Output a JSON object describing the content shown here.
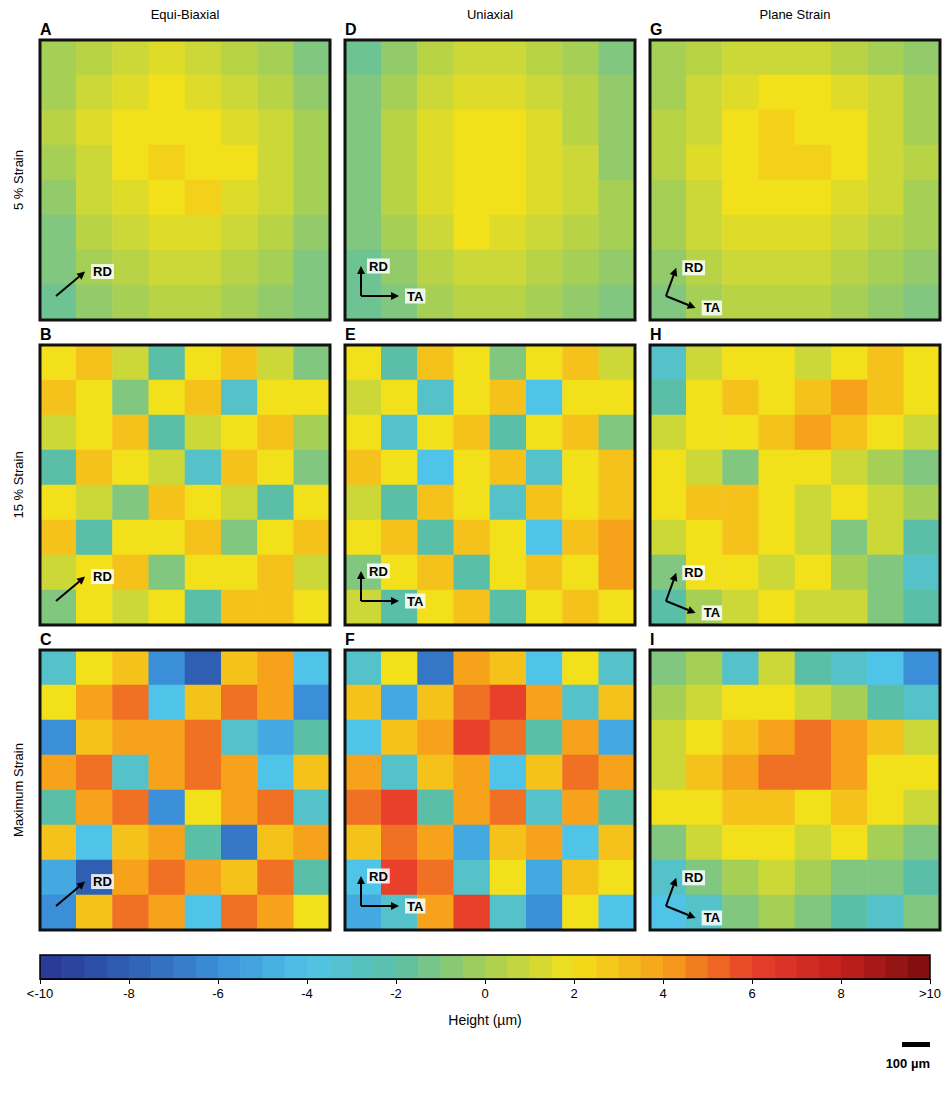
{
  "chart_data": {
    "type": "heatmap",
    "columns": [
      "Equi-Biaxial",
      "Uniaxial",
      "Plane Strain"
    ],
    "rows": [
      "5 % Strain",
      "15 % Strain",
      "Maximum Strain"
    ],
    "panels": [
      {
        "label": "A",
        "arrows": [
          "RD"
        ],
        "cells": [
          [
            0,
            0.5,
            1,
            1.5,
            1,
            0.5,
            0,
            -1
          ],
          [
            0,
            1,
            1.5,
            2,
            1.5,
            1,
            0.5,
            -0.5
          ],
          [
            0.5,
            1.5,
            2,
            2,
            2,
            1.5,
            1,
            0
          ],
          [
            0,
            1,
            2,
            2.5,
            2,
            2,
            1,
            0
          ],
          [
            -0.5,
            1,
            1.5,
            2,
            2.5,
            1.5,
            1,
            0
          ],
          [
            -1,
            0.5,
            1,
            1.5,
            1.5,
            1,
            0.5,
            -0.5
          ],
          [
            -1,
            0,
            0.5,
            1,
            1,
            0.5,
            0,
            -1
          ],
          [
            -1.5,
            -0.5,
            0,
            0.5,
            0.5,
            0,
            -0.5,
            -1
          ]
        ]
      },
      {
        "label": "B",
        "arrows": [
          "RD"
        ],
        "cells": [
          [
            2,
            3,
            1,
            -2,
            2,
            3,
            1,
            -1
          ],
          [
            3,
            2,
            -1,
            2,
            3,
            -3,
            2,
            2
          ],
          [
            1,
            2,
            3,
            -2,
            1,
            2,
            3,
            0
          ],
          [
            -2,
            3,
            2,
            1,
            -3,
            3,
            2,
            -1
          ],
          [
            2,
            1,
            -1,
            3,
            2,
            1,
            -2,
            2
          ],
          [
            3,
            -2,
            2,
            2,
            3,
            -1,
            2,
            3
          ],
          [
            1,
            2,
            3,
            -1,
            2,
            2,
            3,
            1
          ],
          [
            -1,
            2,
            1,
            2,
            -2,
            3,
            3,
            2
          ]
        ]
      },
      {
        "label": "C",
        "arrows": [
          "RD"
        ],
        "cells": [
          [
            -3,
            2,
            3,
            -6,
            -8,
            3,
            4,
            -4
          ],
          [
            2,
            4,
            5,
            -4,
            3,
            5,
            4,
            -6
          ],
          [
            -6,
            3,
            4,
            4,
            5,
            -3,
            -5,
            -2
          ],
          [
            4,
            5,
            -3,
            4,
            5,
            4,
            -4,
            3
          ],
          [
            -2,
            4,
            5,
            -6,
            2,
            4,
            5,
            -3
          ],
          [
            3,
            -4,
            3,
            4,
            -2,
            -7,
            3,
            4
          ],
          [
            -5,
            -8,
            4,
            5,
            4,
            3,
            5,
            -2
          ],
          [
            -6,
            3,
            5,
            4,
            -4,
            5,
            4,
            2
          ]
        ]
      },
      {
        "label": "D",
        "arrows": [
          "RD",
          "TA"
        ],
        "cells": [
          [
            -1.5,
            -0.5,
            0.5,
            1,
            1,
            0.5,
            0,
            -1
          ],
          [
            -1,
            0,
            1,
            1.5,
            1.5,
            1,
            0.5,
            -0.5
          ],
          [
            -1,
            0.5,
            1.5,
            2,
            2,
            1.5,
            0.5,
            -0.5
          ],
          [
            -1,
            0.5,
            1.5,
            2,
            2,
            1.5,
            1,
            -0.5
          ],
          [
            -1,
            0.5,
            1.5,
            2,
            2,
            1.5,
            1,
            0
          ],
          [
            -1,
            0,
            1,
            2,
            1.5,
            1,
            0.5,
            0
          ],
          [
            -1.5,
            -0.5,
            0.5,
            1,
            1,
            0.5,
            0,
            -0.5
          ],
          [
            -1.5,
            -1,
            0,
            0.5,
            0.5,
            0,
            -0.5,
            -1
          ]
        ]
      },
      {
        "label": "E",
        "arrows": [
          "RD",
          "TA"
        ],
        "cells": [
          [
            2,
            -2,
            3,
            2,
            -1,
            2,
            3,
            1
          ],
          [
            1,
            2,
            -3,
            2,
            3,
            -4,
            2,
            2
          ],
          [
            2,
            -3,
            2,
            3,
            -2,
            2,
            3,
            -1
          ],
          [
            3,
            2,
            -4,
            2,
            3,
            -3,
            2,
            3
          ],
          [
            1,
            -2,
            3,
            2,
            -3,
            3,
            2,
            3
          ],
          [
            2,
            3,
            -2,
            3,
            2,
            -4,
            3,
            4
          ],
          [
            -1,
            2,
            3,
            -2,
            2,
            3,
            2,
            4
          ],
          [
            1,
            -2,
            2,
            3,
            -2,
            2,
            3,
            2
          ]
        ]
      },
      {
        "label": "F",
        "arrows": [
          "RD",
          "TA"
        ],
        "cells": [
          [
            -3,
            2,
            -7,
            4,
            3,
            -4,
            2,
            -3
          ],
          [
            3,
            -5,
            3,
            5,
            6,
            4,
            -3,
            3
          ],
          [
            -4,
            3,
            4,
            6,
            5,
            -2,
            4,
            -5
          ],
          [
            4,
            -3,
            3,
            4,
            -4,
            3,
            5,
            4
          ],
          [
            5,
            6,
            -2,
            4,
            5,
            -3,
            4,
            -2
          ],
          [
            3,
            5,
            4,
            -5,
            3,
            4,
            -4,
            3
          ],
          [
            -4,
            6,
            5,
            -3,
            2,
            -5,
            3,
            2
          ],
          [
            -5,
            -3,
            4,
            6,
            -3,
            -6,
            2,
            -4
          ]
        ]
      },
      {
        "label": "G",
        "arrows": [
          "RD",
          "TA"
        ],
        "cells": [
          [
            0,
            0.5,
            1,
            1,
            1,
            0.5,
            0,
            -0.5
          ],
          [
            0,
            1,
            1.5,
            2,
            2,
            1.5,
            1,
            0
          ],
          [
            0.5,
            1,
            2,
            2.5,
            2,
            2,
            1,
            0
          ],
          [
            0.5,
            1.5,
            2,
            2.5,
            2.5,
            2,
            1,
            0.5
          ],
          [
            0,
            1,
            2,
            2,
            2,
            1.5,
            1,
            0
          ],
          [
            0,
            1,
            1.5,
            1.5,
            1.5,
            1,
            0.5,
            0
          ],
          [
            -0.5,
            0.5,
            1,
            1,
            1,
            0.5,
            0,
            -0.5
          ],
          [
            -1,
            0,
            0.5,
            0.5,
            0.5,
            0,
            -0.5,
            -1
          ]
        ]
      },
      {
        "label": "H",
        "arrows": [
          "RD",
          "TA"
        ],
        "cells": [
          [
            -3,
            1,
            2,
            2,
            1,
            2,
            3,
            2
          ],
          [
            -2,
            2,
            3,
            2,
            3,
            4,
            3,
            2
          ],
          [
            1,
            2,
            2,
            3,
            4,
            3,
            2,
            1
          ],
          [
            2,
            1,
            -1,
            2,
            2,
            1,
            0,
            -1
          ],
          [
            2,
            3,
            3,
            2,
            1,
            2,
            1,
            0
          ],
          [
            1,
            2,
            3,
            2,
            1,
            -1,
            1,
            -2
          ],
          [
            -1,
            2,
            2,
            1,
            2,
            0,
            -1,
            -3
          ],
          [
            -2,
            0,
            1,
            2,
            1,
            1,
            -1,
            -2
          ]
        ]
      },
      {
        "label": "I",
        "arrows": [
          "RD",
          "TA"
        ],
        "cells": [
          [
            -1,
            0,
            -3,
            1,
            -2,
            -3,
            -4,
            -6
          ],
          [
            0,
            1,
            2,
            2,
            1,
            0,
            -2,
            -3
          ],
          [
            1,
            2,
            3,
            4,
            5,
            4,
            3,
            1
          ],
          [
            1,
            3,
            4,
            5,
            5,
            4,
            2,
            2
          ],
          [
            2,
            2,
            3,
            3,
            2,
            3,
            2,
            1
          ],
          [
            -1,
            1,
            2,
            2,
            1,
            2,
            0,
            -1
          ],
          [
            -3,
            -1,
            0,
            1,
            0,
            -1,
            -1,
            -2
          ],
          [
            -4,
            -3,
            -1,
            0,
            -1,
            -2,
            -3,
            -1
          ]
        ]
      }
    ],
    "colorbar": {
      "title": "Height (µm)",
      "range": [
        -10,
        10
      ],
      "ticks": [
        {
          "value": -10,
          "label": "<-10"
        },
        -8,
        -6,
        -4,
        -2,
        0,
        2,
        4,
        6,
        8,
        {
          "value": 10,
          "label": ">10"
        }
      ]
    },
    "scale_bar": "100 µm"
  }
}
